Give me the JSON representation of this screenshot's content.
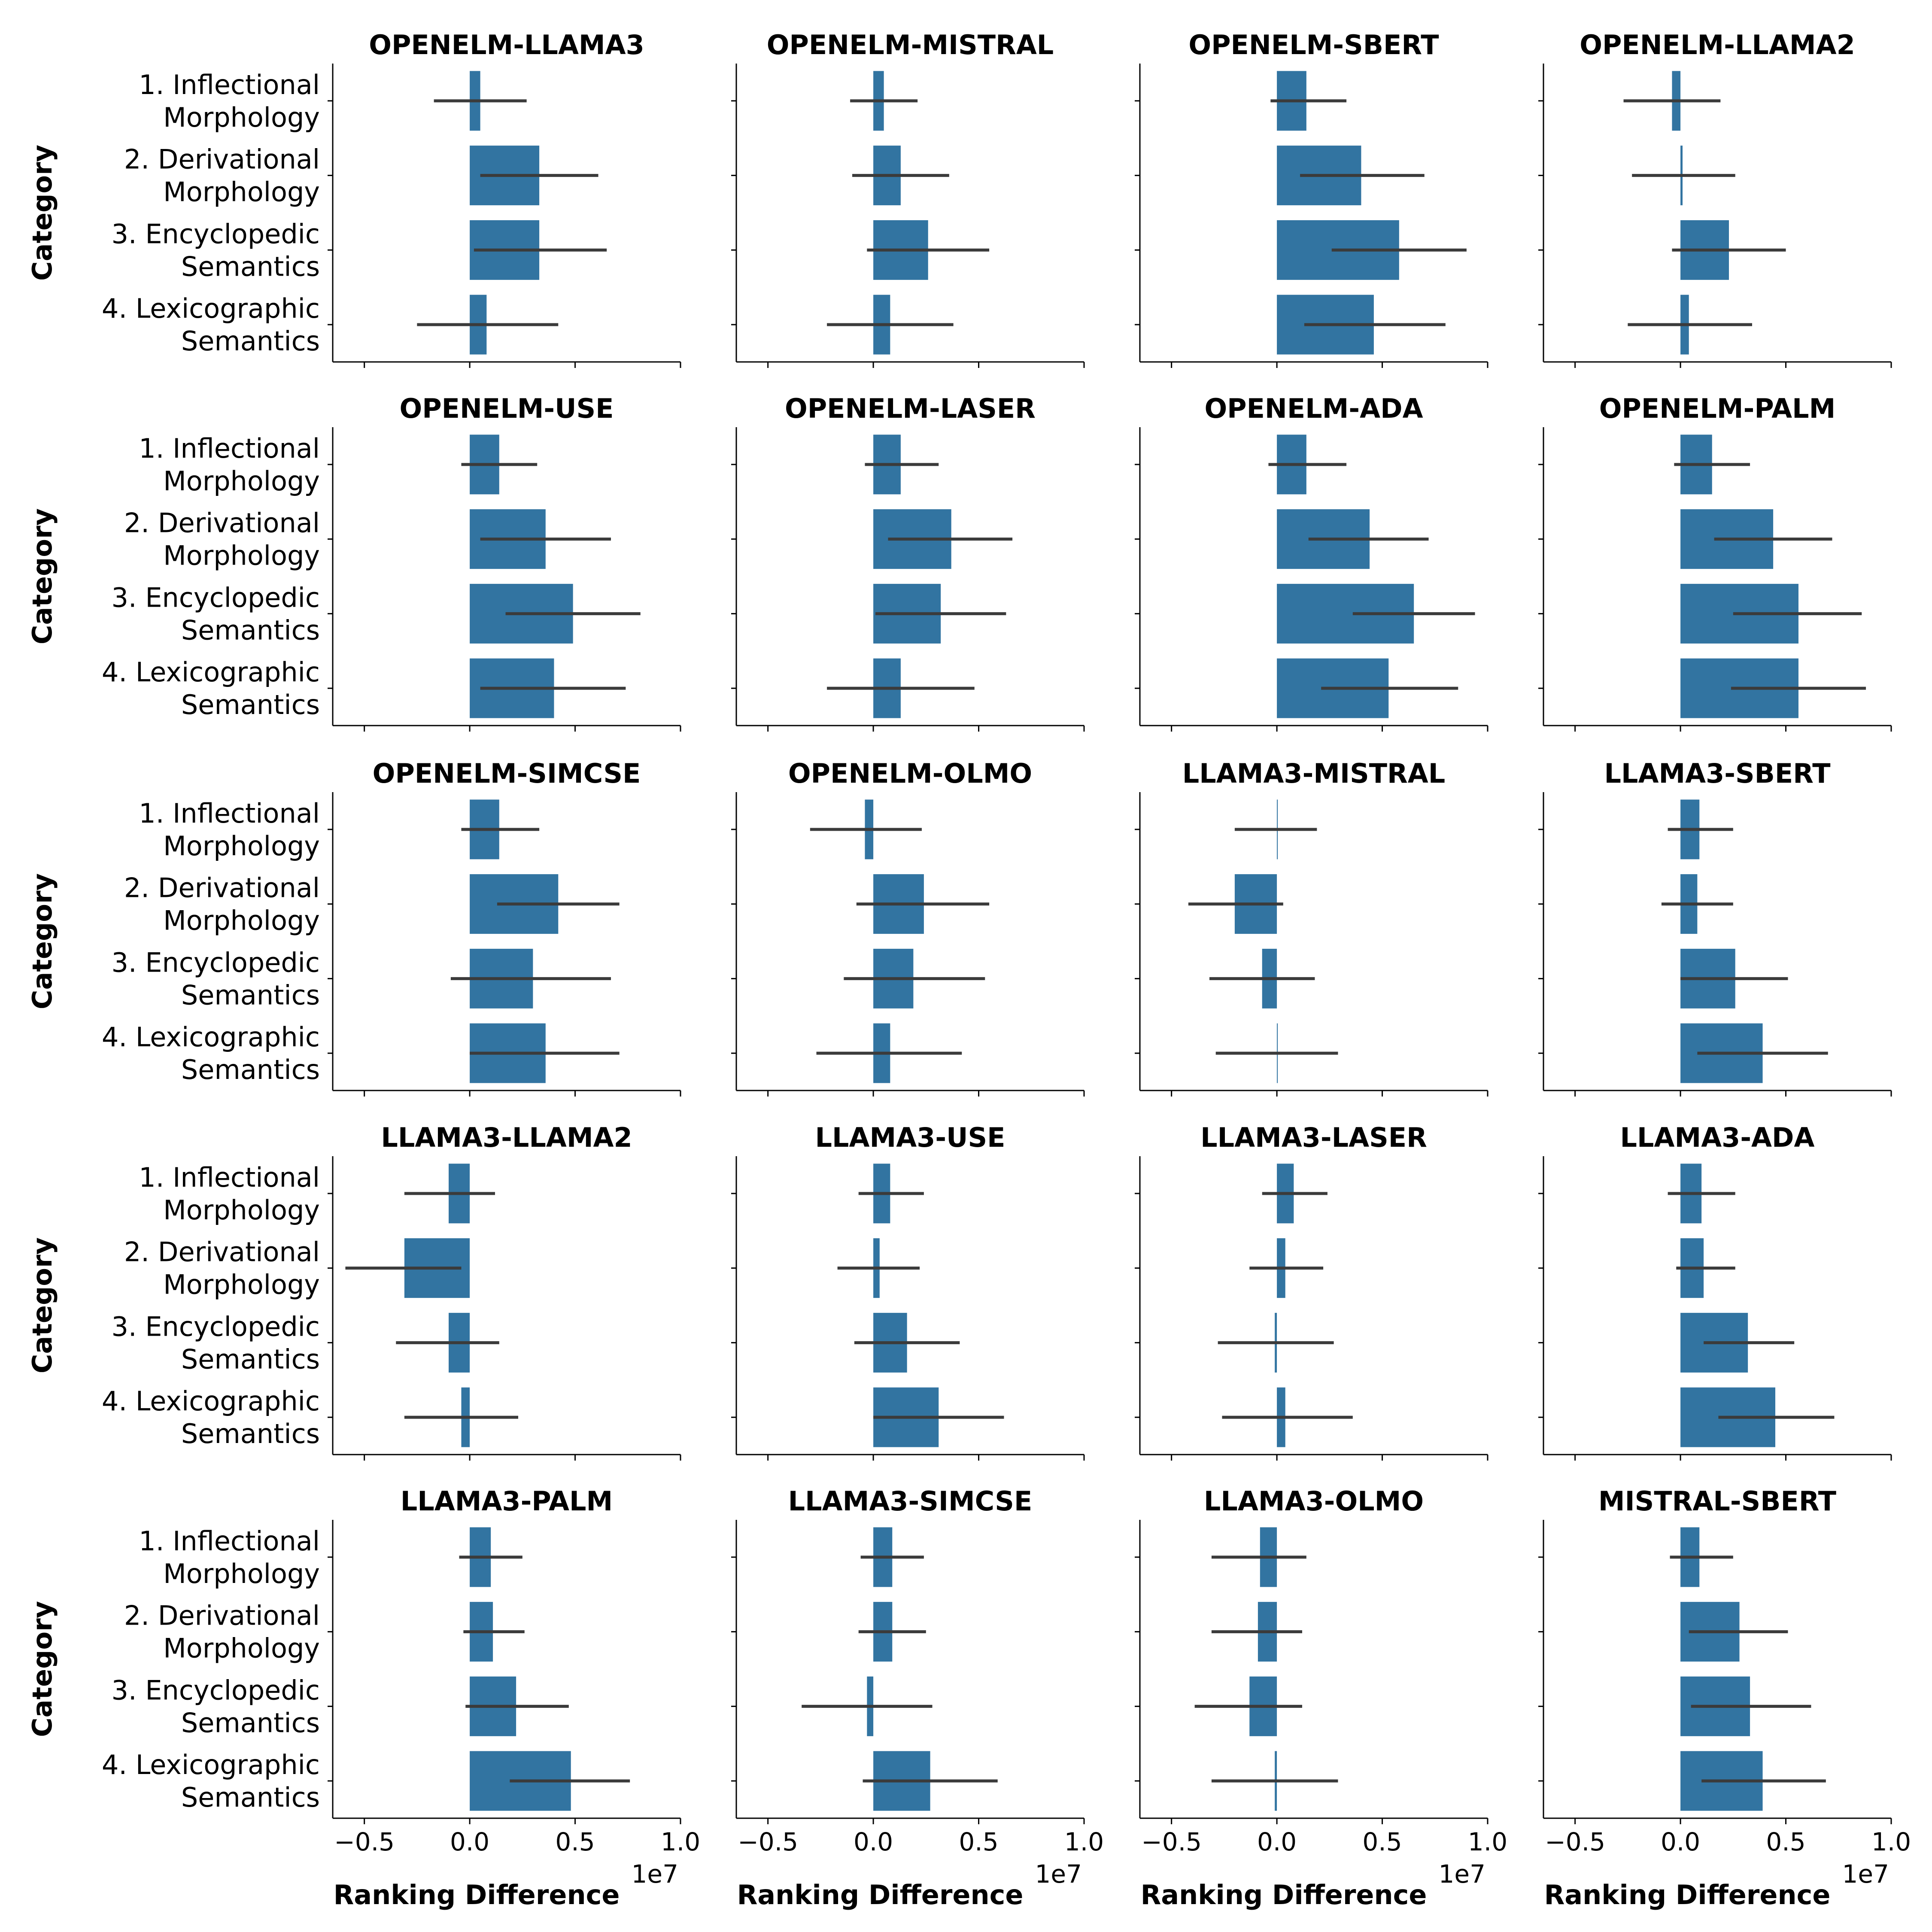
{
  "chart_data": {
    "type": "bar",
    "orientation": "horizontal",
    "y_axis_label": "Category",
    "x_axis_label": "Ranking Difference",
    "x_offset_label": "1e7",
    "xlim": [
      -0.65,
      1.0
    ],
    "x_ticks": [
      -0.5,
      0.0,
      0.5,
      1.0
    ],
    "x_tick_labels": [
      "−0.5",
      "0.0",
      "0.5",
      "1.0"
    ],
    "bar_color": "#3274a1",
    "error_color": "#3b3b3b",
    "categories": [
      [
        "1. Inflectional",
        "Morphology"
      ],
      [
        "2. Derivational",
        "Morphology"
      ],
      [
        "3. Encyclopedic",
        "Semantics"
      ],
      [
        "4. Lexicographic",
        "Semantics"
      ]
    ],
    "facets": [
      {
        "title": "OPENELM-LLAMA3",
        "values": [
          0.05,
          0.33,
          0.33,
          0.08
        ],
        "ci": [
          [
            -0.17,
            0.27
          ],
          [
            0.05,
            0.61
          ],
          [
            0.02,
            0.65
          ],
          [
            -0.25,
            0.42
          ]
        ]
      },
      {
        "title": "OPENELM-MISTRAL",
        "values": [
          0.05,
          0.13,
          0.26,
          0.08
        ],
        "ci": [
          [
            -0.11,
            0.21
          ],
          [
            -0.1,
            0.36
          ],
          [
            -0.03,
            0.55
          ],
          [
            -0.22,
            0.38
          ]
        ]
      },
      {
        "title": "OPENELM-SBERT",
        "values": [
          0.14,
          0.4,
          0.58,
          0.46
        ],
        "ci": [
          [
            -0.03,
            0.33
          ],
          [
            0.11,
            0.7
          ],
          [
            0.26,
            0.9
          ],
          [
            0.13,
            0.8
          ]
        ]
      },
      {
        "title": "OPENELM-LLAMA2",
        "values": [
          -0.04,
          0.01,
          0.23,
          0.04
        ],
        "ci": [
          [
            -0.27,
            0.19
          ],
          [
            -0.23,
            0.26
          ],
          [
            -0.04,
            0.5
          ],
          [
            -0.25,
            0.34
          ]
        ]
      },
      {
        "title": "OPENELM-USE",
        "values": [
          0.14,
          0.36,
          0.49,
          0.4
        ],
        "ci": [
          [
            -0.04,
            0.32
          ],
          [
            0.05,
            0.67
          ],
          [
            0.17,
            0.81
          ],
          [
            0.05,
            0.74
          ]
        ]
      },
      {
        "title": "OPENELM-LASER",
        "values": [
          0.13,
          0.37,
          0.32,
          0.13
        ],
        "ci": [
          [
            -0.04,
            0.31
          ],
          [
            0.07,
            0.66
          ],
          [
            0.01,
            0.63
          ],
          [
            -0.22,
            0.48
          ]
        ]
      },
      {
        "title": "OPENELM-ADA",
        "values": [
          0.14,
          0.44,
          0.65,
          0.53
        ],
        "ci": [
          [
            -0.04,
            0.33
          ],
          [
            0.15,
            0.72
          ],
          [
            0.36,
            0.94
          ],
          [
            0.21,
            0.86
          ]
        ]
      },
      {
        "title": "OPENELM-PALM",
        "values": [
          0.15,
          0.44,
          0.56,
          0.56
        ],
        "ci": [
          [
            -0.03,
            0.33
          ],
          [
            0.16,
            0.72
          ],
          [
            0.25,
            0.86
          ],
          [
            0.24,
            0.88
          ]
        ]
      },
      {
        "title": "OPENELM-SIMCSE",
        "values": [
          0.14,
          0.42,
          0.3,
          0.36
        ],
        "ci": [
          [
            -0.04,
            0.33
          ],
          [
            0.13,
            0.71
          ],
          [
            -0.09,
            0.67
          ],
          [
            0.0,
            0.71
          ]
        ]
      },
      {
        "title": "OPENELM-OLMO",
        "values": [
          -0.04,
          0.24,
          0.19,
          0.08
        ],
        "ci": [
          [
            -0.3,
            0.23
          ],
          [
            -0.08,
            0.55
          ],
          [
            -0.14,
            0.53
          ],
          [
            -0.27,
            0.42
          ]
        ]
      },
      {
        "title": "LLAMA3-MISTRAL",
        "values": [
          0.0,
          -0.2,
          -0.07,
          0.0
        ],
        "ci": [
          [
            -0.2,
            0.19
          ],
          [
            -0.42,
            0.03
          ],
          [
            -0.32,
            0.18
          ],
          [
            -0.29,
            0.29
          ]
        ]
      },
      {
        "title": "LLAMA3-SBERT",
        "values": [
          0.09,
          0.08,
          0.26,
          0.39
        ],
        "ci": [
          [
            -0.06,
            0.25
          ],
          [
            -0.09,
            0.25
          ],
          [
            0.0,
            0.51
          ],
          [
            0.08,
            0.7
          ]
        ]
      },
      {
        "title": "LLAMA3-LLAMA2",
        "values": [
          -0.1,
          -0.31,
          -0.1,
          -0.04
        ],
        "ci": [
          [
            -0.31,
            0.12
          ],
          [
            -0.59,
            -0.04
          ],
          [
            -0.35,
            0.14
          ],
          [
            -0.31,
            0.23
          ]
        ]
      },
      {
        "title": "LLAMA3-USE",
        "values": [
          0.08,
          0.03,
          0.16,
          0.31
        ],
        "ci": [
          [
            -0.07,
            0.24
          ],
          [
            -0.17,
            0.22
          ],
          [
            -0.09,
            0.41
          ],
          [
            0.0,
            0.62
          ]
        ]
      },
      {
        "title": "LLAMA3-LASER",
        "values": [
          0.08,
          0.04,
          -0.01,
          0.04
        ],
        "ci": [
          [
            -0.07,
            0.24
          ],
          [
            -0.13,
            0.22
          ],
          [
            -0.28,
            0.27
          ],
          [
            -0.26,
            0.36
          ]
        ]
      },
      {
        "title": "LLAMA3-ADA",
        "values": [
          0.1,
          0.11,
          0.32,
          0.45
        ],
        "ci": [
          [
            -0.06,
            0.26
          ],
          [
            -0.02,
            0.26
          ],
          [
            0.11,
            0.54
          ],
          [
            0.18,
            0.73
          ]
        ]
      },
      {
        "title": "LLAMA3-PALM",
        "values": [
          0.1,
          0.11,
          0.22,
          0.48
        ],
        "ci": [
          [
            -0.05,
            0.25
          ],
          [
            -0.03,
            0.26
          ],
          [
            -0.02,
            0.47
          ],
          [
            0.19,
            0.76
          ]
        ]
      },
      {
        "title": "LLAMA3-SIMCSE",
        "values": [
          0.09,
          0.09,
          -0.03,
          0.27
        ],
        "ci": [
          [
            -0.06,
            0.24
          ],
          [
            -0.07,
            0.25
          ],
          [
            -0.34,
            0.28
          ],
          [
            -0.05,
            0.59
          ]
        ]
      },
      {
        "title": "LLAMA3-OLMO",
        "values": [
          -0.08,
          -0.09,
          -0.13,
          -0.01
        ],
        "ci": [
          [
            -0.31,
            0.14
          ],
          [
            -0.31,
            0.12
          ],
          [
            -0.39,
            0.12
          ],
          [
            -0.31,
            0.29
          ]
        ]
      },
      {
        "title": "MISTRAL-SBERT",
        "values": [
          0.09,
          0.28,
          0.33,
          0.39
        ],
        "ci": [
          [
            -0.05,
            0.25
          ],
          [
            0.04,
            0.51
          ],
          [
            0.05,
            0.62
          ],
          [
            0.1,
            0.69
          ]
        ]
      }
    ]
  }
}
